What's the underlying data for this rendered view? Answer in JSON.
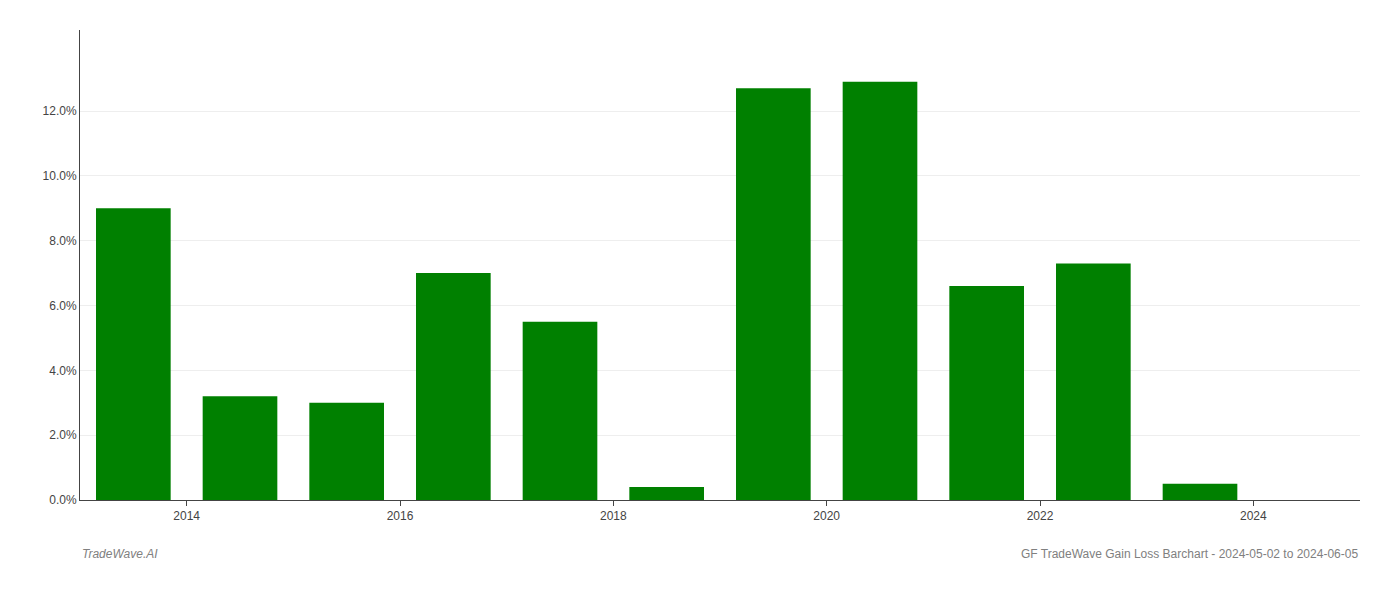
{
  "chart_data": {
    "type": "bar",
    "x": [
      2013.5,
      2014.5,
      2015.5,
      2016.5,
      2017.5,
      2018.5,
      2019.5,
      2020.5,
      2021.5,
      2022.5,
      2023.5
    ],
    "values": [
      0.09,
      0.032,
      0.03,
      0.07,
      0.055,
      0.004,
      0.127,
      0.129,
      0.066,
      0.073,
      0.005
    ],
    "color": "#008000",
    "xlim": [
      2013.0,
      2025.0
    ],
    "xticks": [
      2014,
      2016,
      2018,
      2020,
      2022,
      2024
    ],
    "ylim": [
      0,
      0.145
    ],
    "yticks": [
      {
        "value": 0.0,
        "label": "0.0%"
      },
      {
        "value": 0.02,
        "label": "2.0%"
      },
      {
        "value": 0.04,
        "label": "4.0%"
      },
      {
        "value": 0.06,
        "label": "6.0%"
      },
      {
        "value": 0.08,
        "label": "8.0%"
      },
      {
        "value": 0.1,
        "label": "10.0%"
      },
      {
        "value": 0.12,
        "label": "12.0%"
      }
    ],
    "grid": true,
    "annotations": [
      "TradeWave.AI",
      "GF TradeWave Gain Loss Barchart - 2024-05-02 to 2024-06-05"
    ]
  }
}
